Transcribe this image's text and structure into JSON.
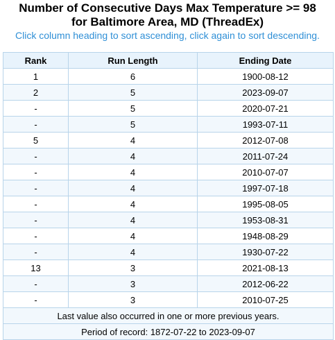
{
  "header": {
    "title_line1": "Number of Consecutive Days Max Temperature >= 98",
    "title_line2": "for Baltimore Area, MD (ThreadEx)",
    "sort_hint": "Click column heading to sort ascending, click again to sort descending."
  },
  "table": {
    "columns": [
      "Rank",
      "Run Length",
      "Ending Date"
    ],
    "rows": [
      {
        "rank": "1",
        "run": "6",
        "date": "1900-08-12"
      },
      {
        "rank": "2",
        "run": "5",
        "date": "2023-09-07"
      },
      {
        "rank": "-",
        "run": "5",
        "date": "2020-07-21"
      },
      {
        "rank": "-",
        "run": "5",
        "date": "1993-07-11"
      },
      {
        "rank": "5",
        "run": "4",
        "date": "2012-07-08"
      },
      {
        "rank": "-",
        "run": "4",
        "date": "2011-07-24"
      },
      {
        "rank": "-",
        "run": "4",
        "date": "2010-07-07"
      },
      {
        "rank": "-",
        "run": "4",
        "date": "1997-07-18"
      },
      {
        "rank": "-",
        "run": "4",
        "date": "1995-08-05"
      },
      {
        "rank": "-",
        "run": "4",
        "date": "1953-08-31"
      },
      {
        "rank": "-",
        "run": "4",
        "date": "1948-08-29"
      },
      {
        "rank": "-",
        "run": "4",
        "date": "1930-07-22"
      },
      {
        "rank": "13",
        "run": "3",
        "date": "2021-08-13"
      },
      {
        "rank": "-",
        "run": "3",
        "date": "2012-06-22"
      },
      {
        "rank": "-",
        "run": "3",
        "date": "2010-07-25"
      }
    ],
    "footnote": "Last value also occurred in one or more previous years.",
    "period": "Period of record: 1872-07-22 to 2023-09-07"
  },
  "colors": {
    "hint": "#2f8fd6",
    "header_bg": "#e8f3fc",
    "border": "#b8d4ea",
    "stripe": "#f2f8fd"
  }
}
